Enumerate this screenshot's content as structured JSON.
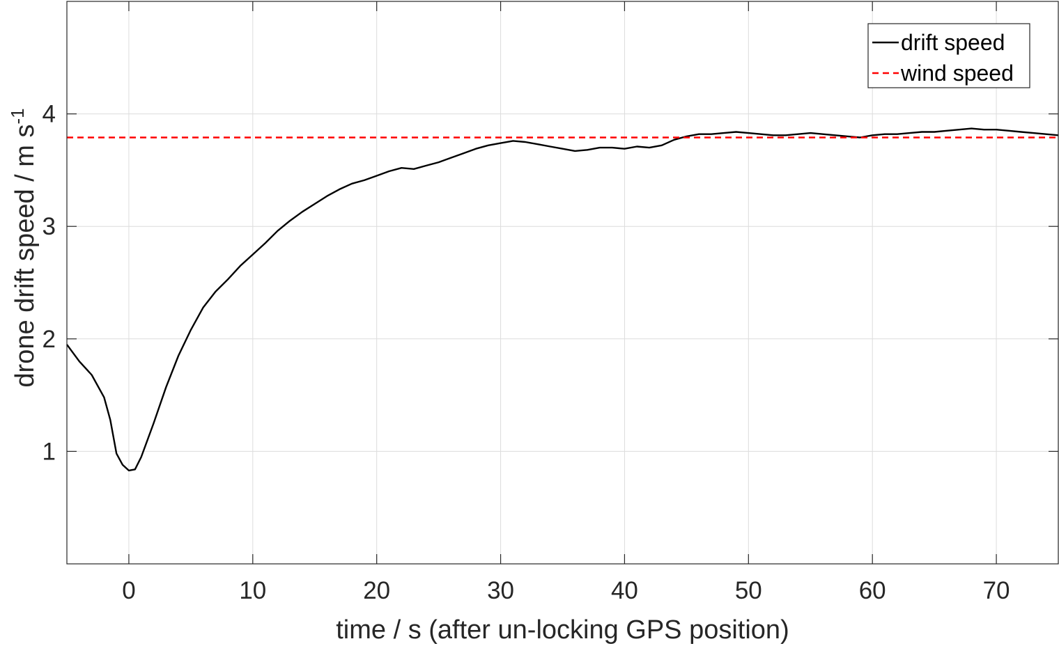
{
  "chart_data": {
    "type": "line",
    "xlabel": "time / s (after un-locking GPS position)",
    "ylabel": "drone drift speed / m s",
    "ylabel_superscript": "-1",
    "xlim": [
      -5,
      75
    ],
    "ylim": [
      0,
      5
    ],
    "xticks": [
      0,
      10,
      20,
      30,
      40,
      50,
      60,
      70
    ],
    "yticks": [
      1,
      2,
      3,
      4
    ],
    "grid": true,
    "legend_position": "top-right",
    "series": [
      {
        "name": "drift speed",
        "style": "solid",
        "color": "#000000",
        "x": [
          -5,
          -4,
          -3,
          -2,
          -1.5,
          -1,
          -0.5,
          0,
          0.5,
          1,
          2,
          3,
          4,
          5,
          6,
          7,
          8,
          9,
          10,
          11,
          12,
          13,
          14,
          15,
          16,
          17,
          18,
          19,
          20,
          21,
          22,
          23,
          24,
          25,
          26,
          27,
          28,
          29,
          30,
          31,
          32,
          33,
          34,
          35,
          36,
          37,
          38,
          39,
          40,
          41,
          42,
          43,
          44,
          45,
          46,
          47,
          48,
          49,
          50,
          51,
          52,
          53,
          54,
          55,
          56,
          57,
          58,
          59,
          60,
          61,
          62,
          63,
          64,
          65,
          66,
          67,
          68,
          69,
          70,
          71,
          72,
          73,
          74,
          75
        ],
        "y": [
          1.95,
          1.8,
          1.68,
          1.48,
          1.28,
          0.98,
          0.88,
          0.83,
          0.84,
          0.95,
          1.25,
          1.57,
          1.85,
          2.08,
          2.28,
          2.42,
          2.53,
          2.65,
          2.75,
          2.85,
          2.96,
          3.05,
          3.13,
          3.2,
          3.27,
          3.33,
          3.38,
          3.41,
          3.45,
          3.49,
          3.52,
          3.51,
          3.54,
          3.57,
          3.61,
          3.65,
          3.69,
          3.72,
          3.74,
          3.76,
          3.75,
          3.73,
          3.71,
          3.69,
          3.67,
          3.68,
          3.7,
          3.7,
          3.69,
          3.71,
          3.7,
          3.72,
          3.77,
          3.8,
          3.82,
          3.82,
          3.83,
          3.84,
          3.83,
          3.82,
          3.81,
          3.81,
          3.82,
          3.83,
          3.82,
          3.81,
          3.8,
          3.79,
          3.81,
          3.82,
          3.82,
          3.83,
          3.84,
          3.84,
          3.85,
          3.86,
          3.87,
          3.86,
          3.86,
          3.85,
          3.84,
          3.83,
          3.82,
          3.81
        ]
      },
      {
        "name": "wind speed",
        "style": "dashed",
        "color": "#ff0000",
        "x": [
          -5,
          75
        ],
        "y": [
          3.79,
          3.79
        ]
      }
    ]
  }
}
